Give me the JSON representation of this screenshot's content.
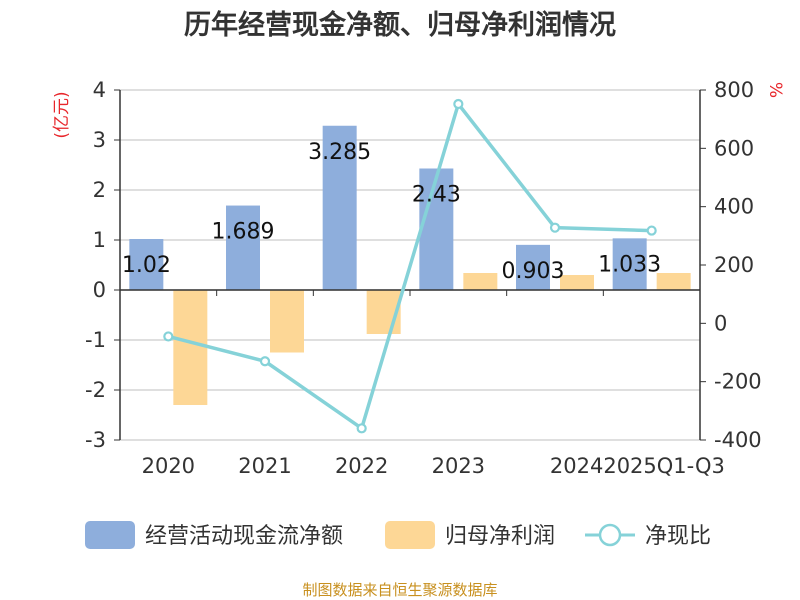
{
  "chart_data": {
    "type": "bar",
    "title": "历年经营现金净额、归母净利润情况",
    "left_axis_unit": "(亿元)",
    "right_axis_unit": "%",
    "categories": [
      "2020",
      "2021",
      "2022",
      "2023",
      "2024",
      "2025Q1-Q3"
    ],
    "left_ylim": [
      -3,
      4
    ],
    "left_ticks": [
      "4",
      "3",
      "2",
      "1",
      "0",
      "-1",
      "-2",
      "-3"
    ],
    "right_ylim": [
      -400,
      800
    ],
    "right_ticks": [
      "800",
      "600",
      "400",
      "200",
      "0",
      "-200",
      "-400"
    ],
    "grid": true,
    "legend_position": "bottom",
    "series": [
      {
        "name": "经营活动现金流净额",
        "type": "bar",
        "axis": "left",
        "color": "#8eaedc",
        "values": [
          1.02,
          1.689,
          3.285,
          2.43,
          0.903,
          1.033
        ],
        "data_labels": [
          "1.02",
          "1.689",
          "3.285",
          "2.43",
          "0.903",
          "1.033"
        ]
      },
      {
        "name": "归母净利润",
        "type": "bar",
        "axis": "left",
        "color": "#fdd796",
        "values": [
          -2.3,
          -1.25,
          -0.88,
          0.34,
          0.3,
          0.34
        ]
      },
      {
        "name": "净现比",
        "type": "line",
        "axis": "right",
        "color": "#85d2d8",
        "values": [
          -45,
          -130,
          -360,
          752,
          328,
          318
        ]
      }
    ],
    "source": "制图数据来自恒生聚源数据库"
  }
}
